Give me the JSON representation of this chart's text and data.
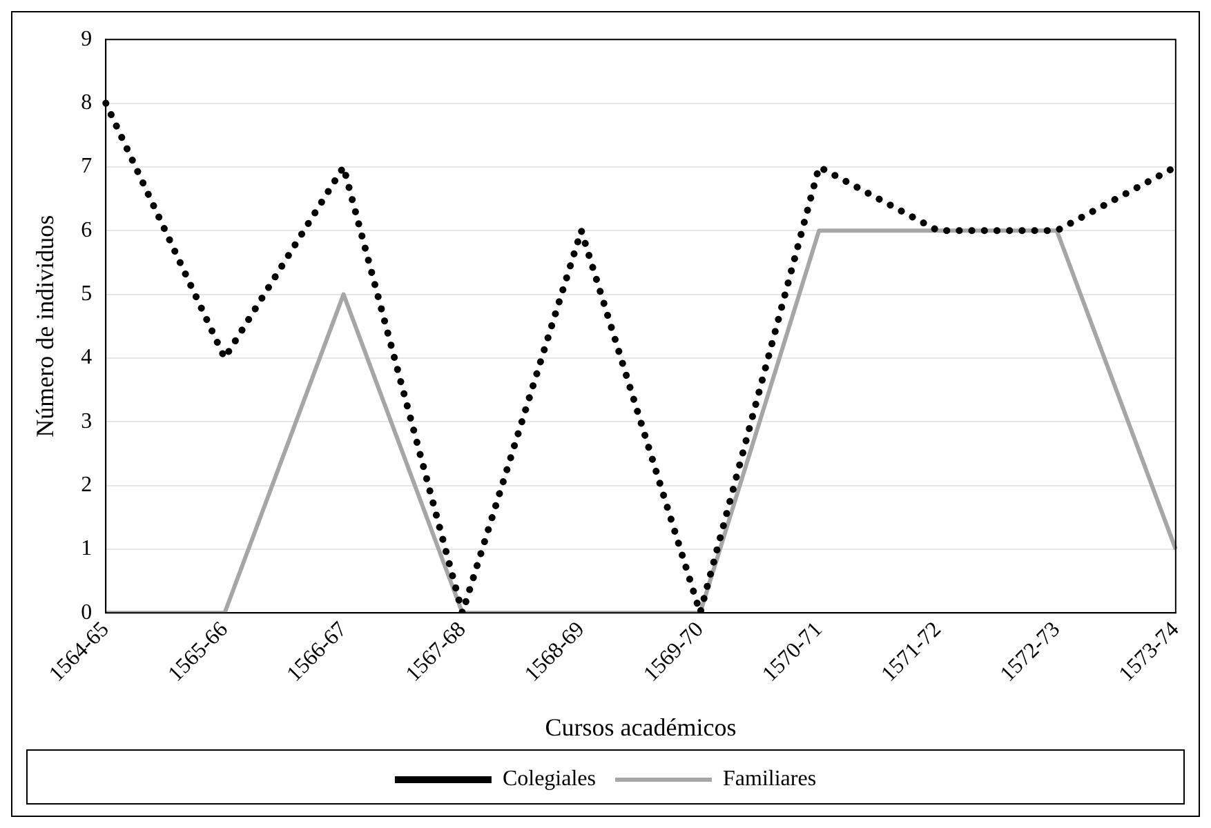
{
  "chart_data": {
    "type": "line",
    "xlabel": "Cursos académicos",
    "ylabel": "Número de individuos",
    "categories": [
      "1564-65",
      "1565-66",
      "1566-67",
      "1567-68",
      "1568-69",
      "1569-70",
      "1570-71",
      "1571-72",
      "1572-73",
      "1573-74"
    ],
    "series": [
      {
        "name": "Colegiales",
        "color": "#000000",
        "line_style": "dotted",
        "values": [
          8,
          4,
          7,
          0,
          6,
          0,
          7,
          6,
          6,
          7
        ]
      },
      {
        "name": "Familiares",
        "color": "#a6a6a6",
        "line_style": "solid",
        "values": [
          0,
          0,
          5,
          0,
          0,
          0,
          6,
          6,
          6,
          1
        ]
      }
    ],
    "ylim": [
      0,
      9
    ],
    "yticks": [
      0,
      1,
      2,
      3,
      4,
      5,
      6,
      7,
      8,
      9
    ],
    "grid": "y",
    "legend": "bottom",
    "marker": "none"
  }
}
